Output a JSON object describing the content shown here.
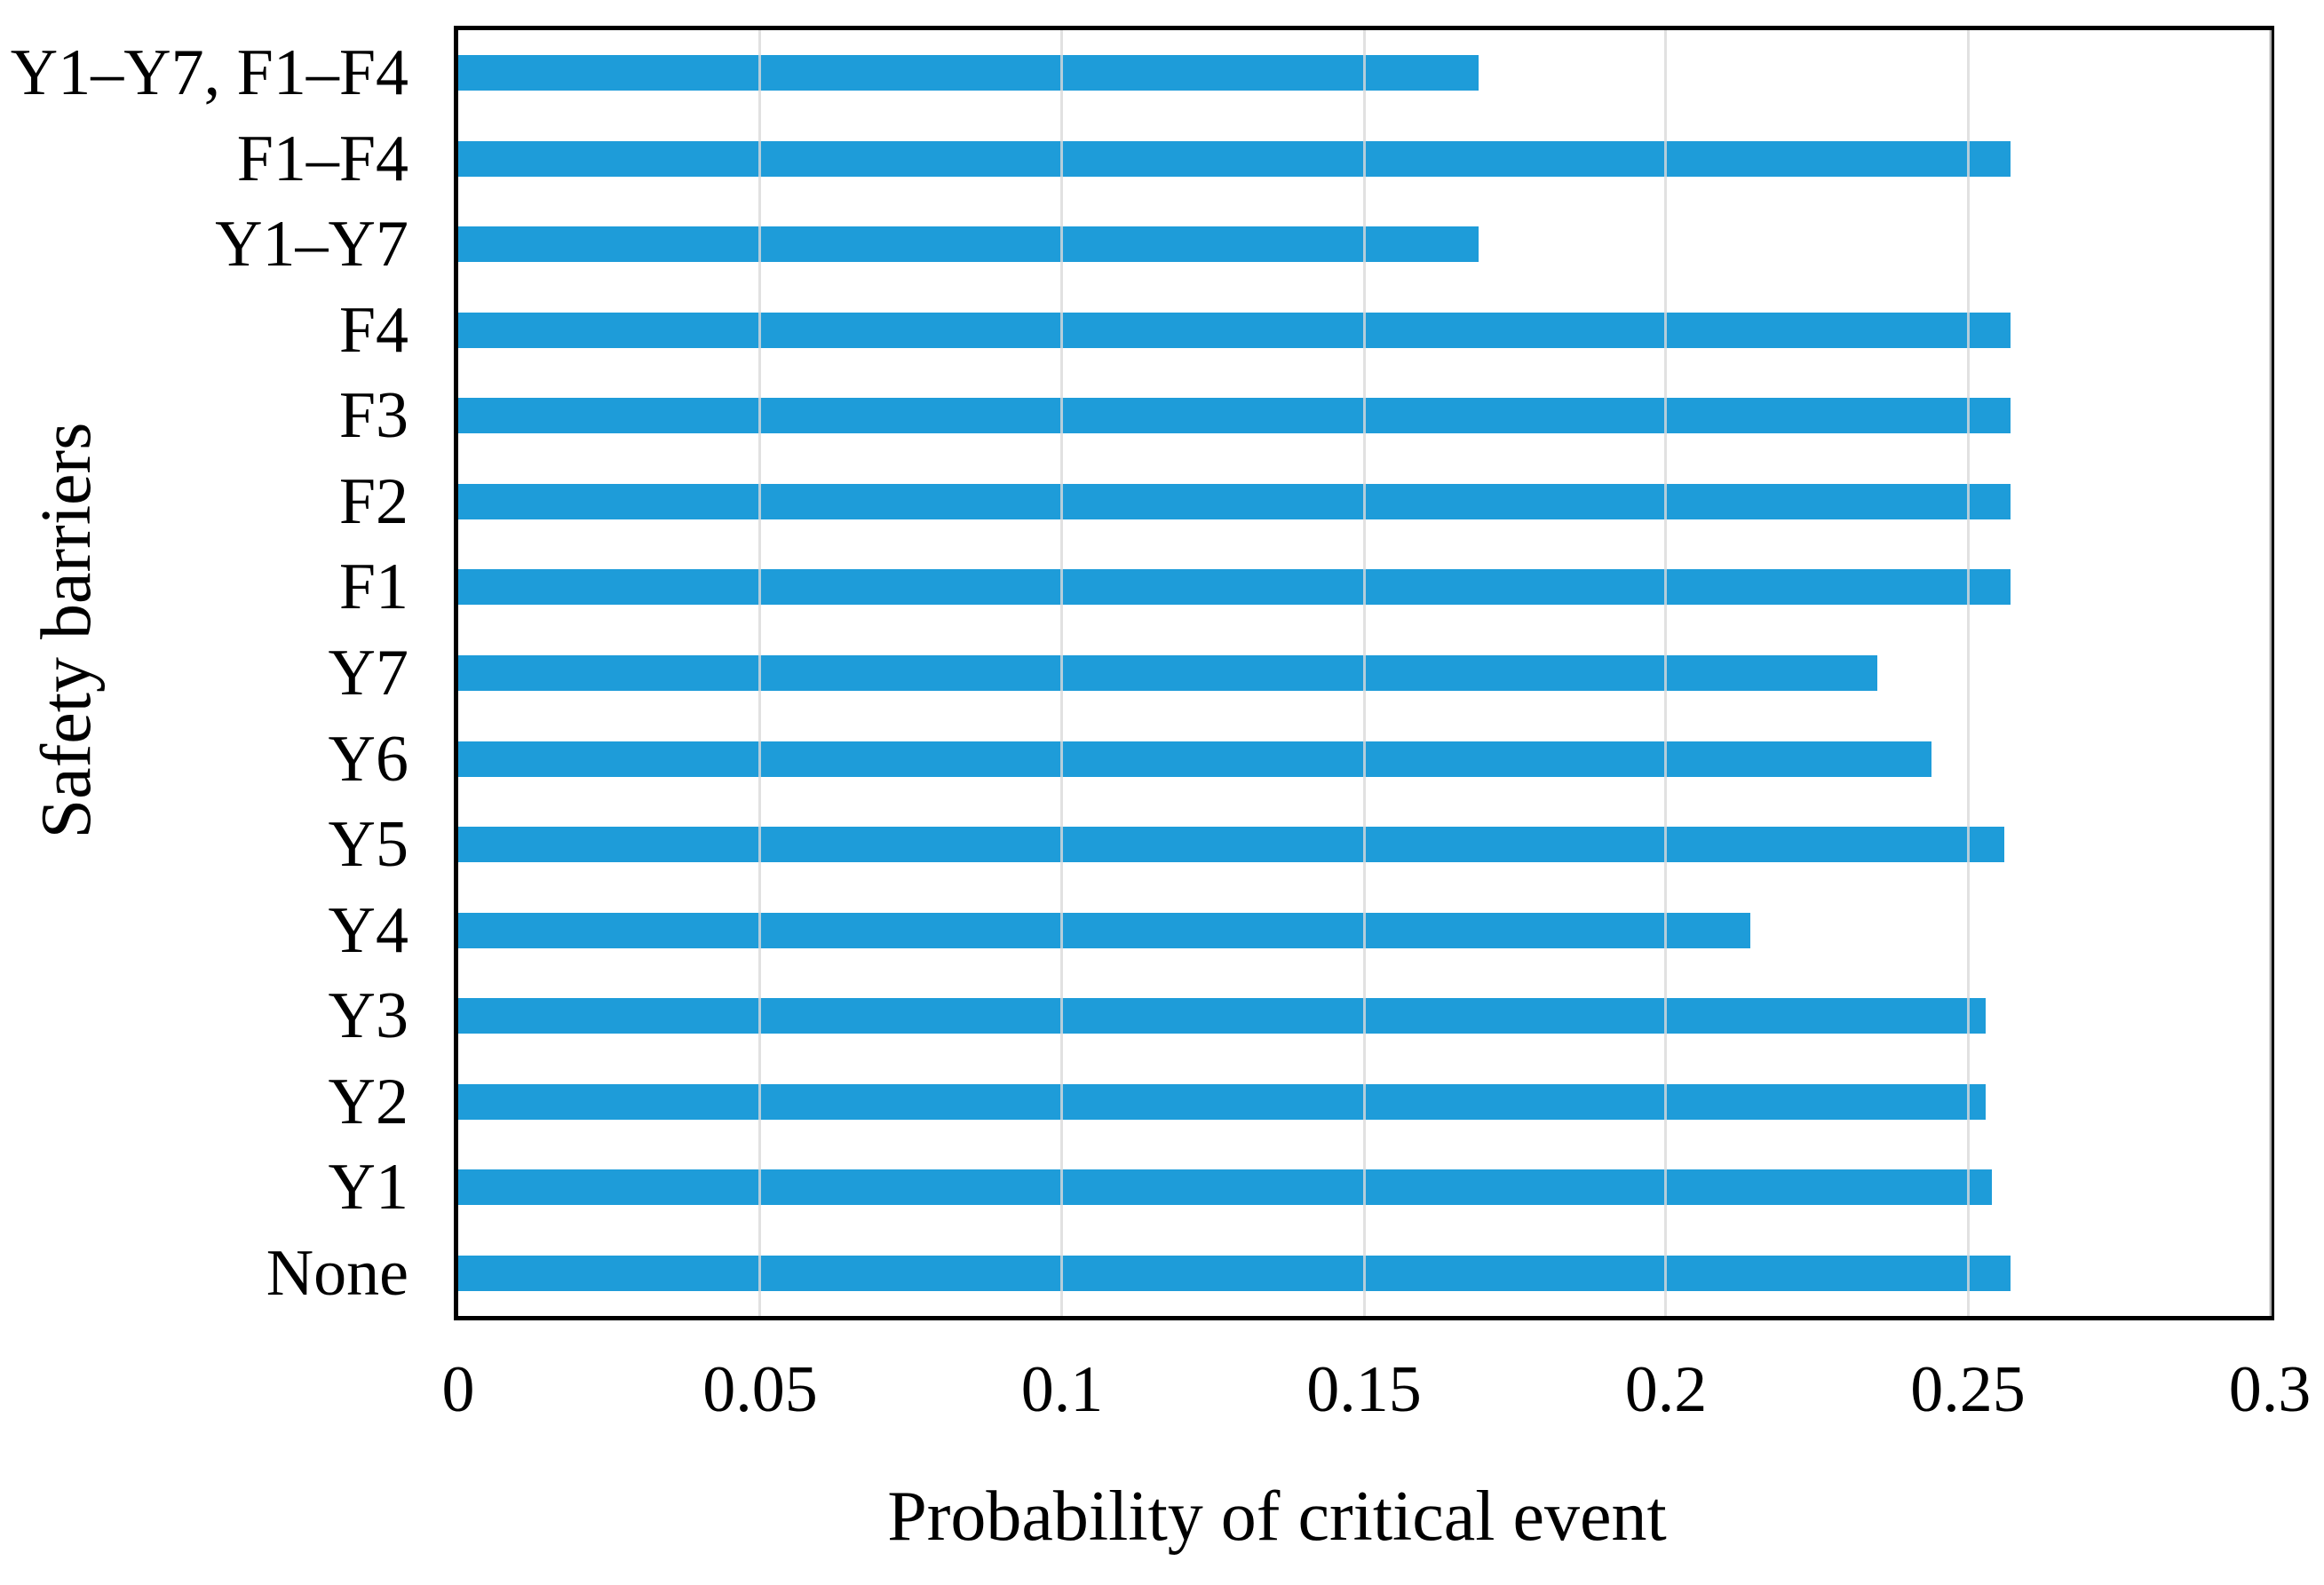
{
  "figure": {
    "background_color": "#ffffff",
    "bar_color": "#1e9cd9",
    "gridline_color_rgba": "rgba(217,217,217,0.8)",
    "axis_border_color": "#000000",
    "text_color": "#000000"
  },
  "chart_data": {
    "type": "bar",
    "orientation": "horizontal",
    "xlabel": "Probability of critical event",
    "ylabel": "Safety barriers",
    "categories_top_to_bottom": [
      "Y1–Y7, F1–F4",
      "F1–F4",
      "Y1–Y7",
      "F4",
      "F3",
      "F2",
      "F1",
      "Y7",
      "Y6",
      "Y5",
      "Y4",
      "Y3",
      "Y2",
      "Y1",
      "None"
    ],
    "values": [
      0.169,
      0.257,
      0.169,
      0.257,
      0.257,
      0.257,
      0.257,
      0.235,
      0.244,
      0.256,
      0.214,
      0.253,
      0.253,
      0.254,
      0.257
    ],
    "xlim": [
      0,
      0.3
    ],
    "xticks": [
      0,
      0.05,
      0.1,
      0.15,
      0.2,
      0.25,
      0.3
    ],
    "xtick_labels": [
      "0",
      "0.05",
      "0.1",
      "0.15",
      "0.2",
      "0.25",
      "0.3"
    ],
    "grid": "vertical gridlines at each tick, drawn over bars",
    "legend": "none",
    "title": ""
  }
}
